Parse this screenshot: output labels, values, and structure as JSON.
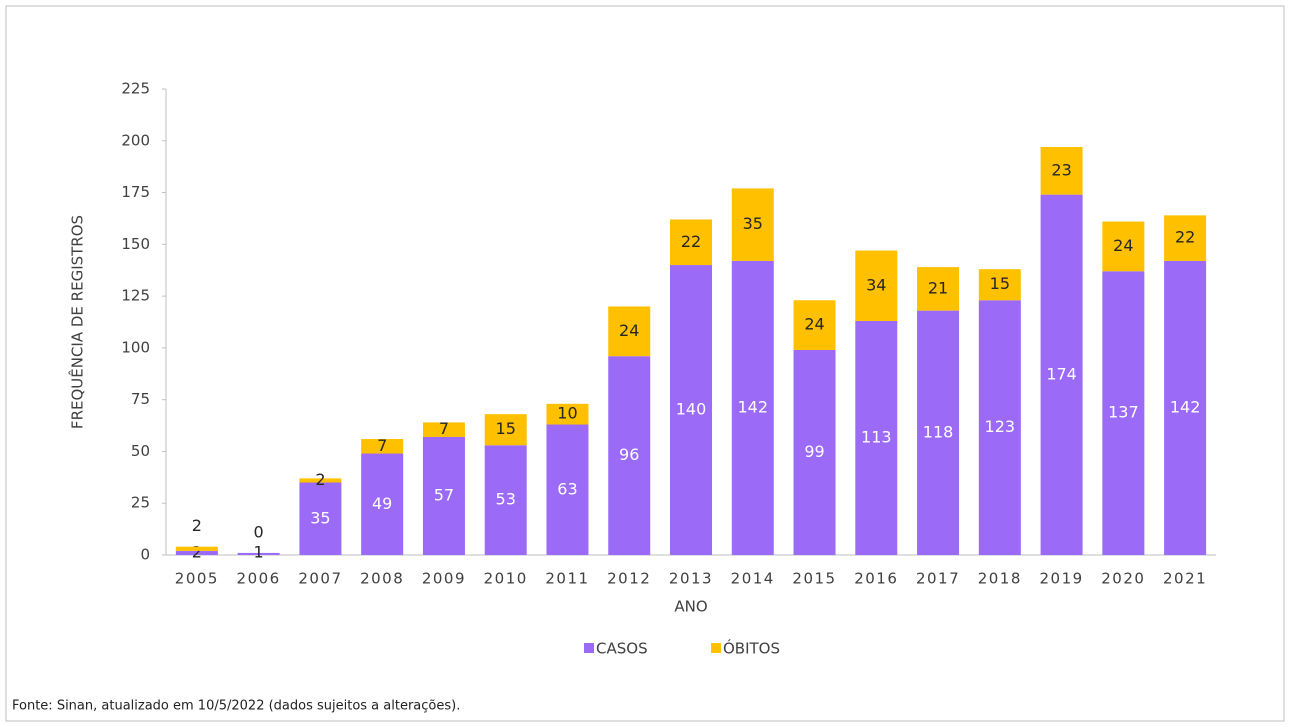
{
  "chart_data": {
    "type": "stacked_bar",
    "x_label": "ANO",
    "y_label": "FREQUÊNCIA DE REGISTROS",
    "source": "Fonte: Sinan, atualizado em 10/5/2022 (dados sujeitos a alterações).",
    "categories": [
      "2005",
      "2006",
      "2007",
      "2008",
      "2009",
      "2010",
      "2011",
      "2012",
      "2013",
      "2014",
      "2015",
      "2016",
      "2017",
      "2018",
      "2019",
      "2020",
      "2021"
    ],
    "series": [
      {
        "name": "CASOS",
        "color": "#9b6af6",
        "values": [
          2,
          1,
          35,
          49,
          57,
          53,
          63,
          96,
          140,
          142,
          99,
          113,
          118,
          123,
          174,
          137,
          142
        ]
      },
      {
        "name": "ÓBITOS",
        "color": "#ffc000",
        "values": [
          2,
          0,
          2,
          7,
          7,
          15,
          10,
          24,
          22,
          35,
          24,
          34,
          21,
          15,
          23,
          24,
          22
        ]
      }
    ],
    "ylim": [
      0,
      225
    ],
    "yticks": [
      0,
      25,
      50,
      75,
      100,
      125,
      150,
      175,
      200,
      225
    ],
    "legend": "bottom"
  }
}
